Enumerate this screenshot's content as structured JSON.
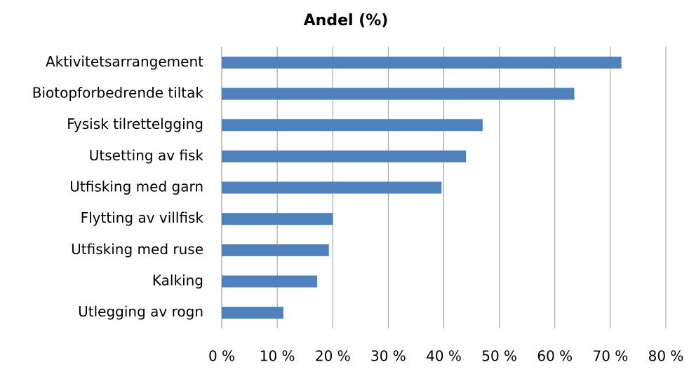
{
  "chart_data": {
    "type": "barh",
    "title": "Andel (%)",
    "categories": [
      "Aktivitetsarrangement",
      "Biotopforbedrende tiltak",
      "Fysisk tilrettelgging",
      "Utsetting av fisk",
      "Utfisking med garn",
      "Flytting av villfisk",
      "Utfisking med ruse",
      "Kalking",
      "Utlegging av rogn"
    ],
    "values": [
      72,
      63.5,
      47,
      44,
      39.6,
      20,
      19.3,
      17.2,
      11.1
    ],
    "color": "#4f81bd",
    "xlim": [
      0,
      80
    ],
    "xticks": [
      {
        "value": 0,
        "label": "0 %"
      },
      {
        "value": 10,
        "label": "10 %"
      },
      {
        "value": 20,
        "label": "20 %"
      },
      {
        "value": 30,
        "label": "30 %"
      },
      {
        "value": 40,
        "label": "40 %"
      },
      {
        "value": 50,
        "label": "50 %"
      },
      {
        "value": 60,
        "label": "60 %"
      },
      {
        "value": 70,
        "label": "70 %"
      },
      {
        "value": 80,
        "label": "80 %"
      }
    ],
    "grid": true
  }
}
